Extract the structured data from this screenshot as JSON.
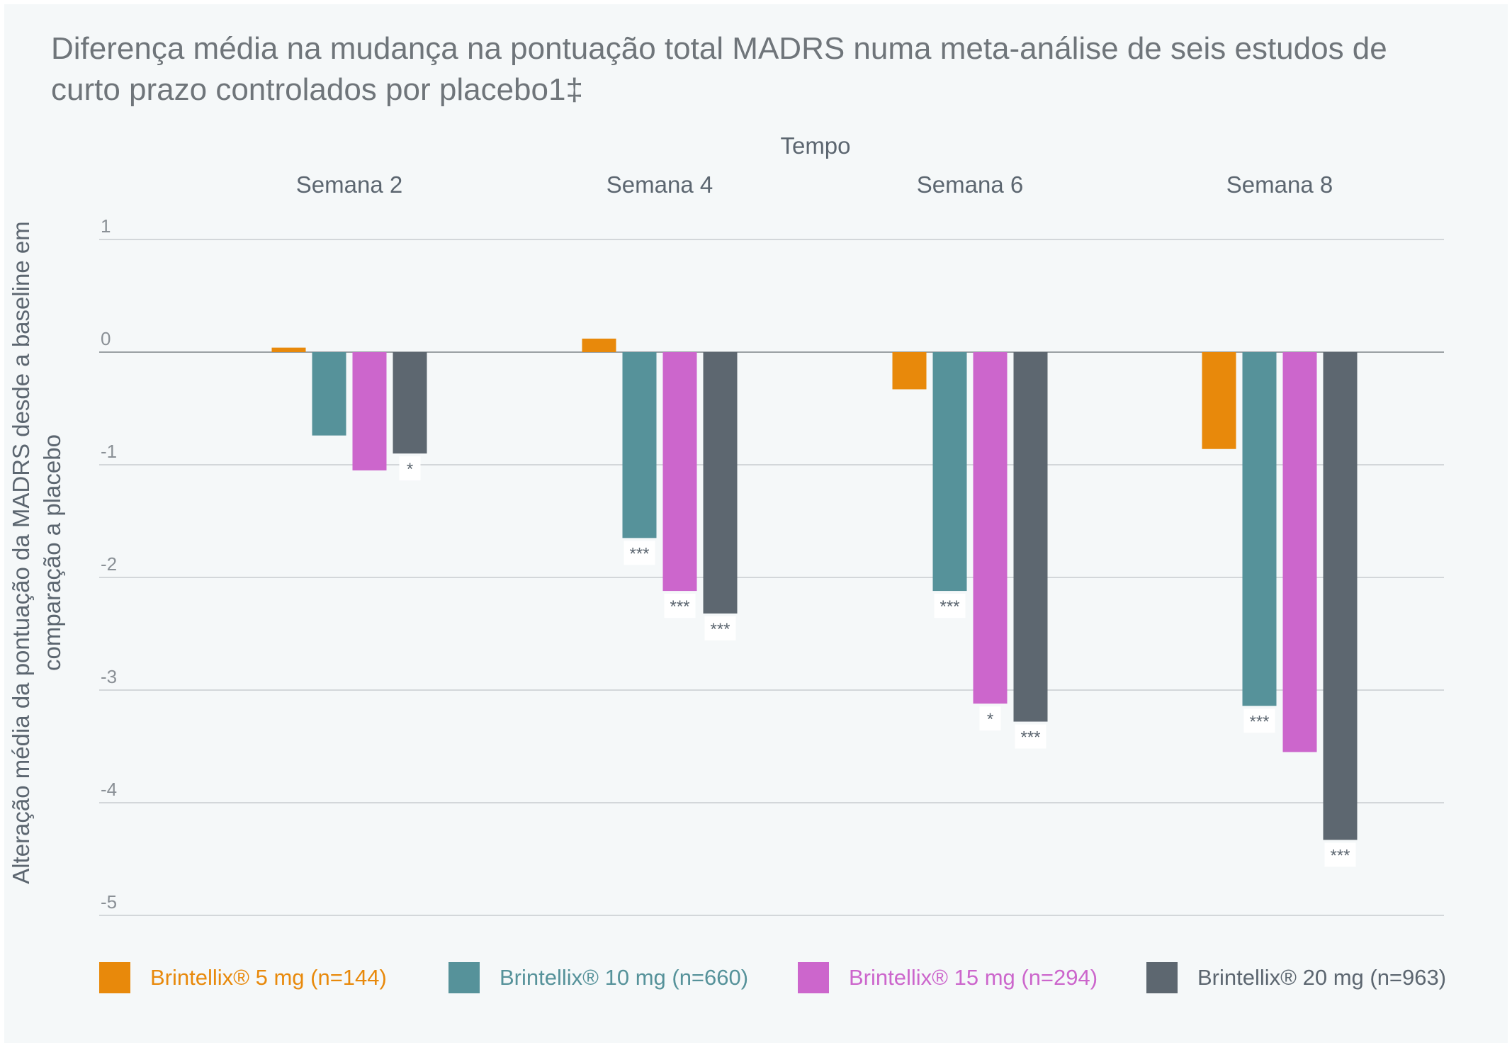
{
  "title": "Diferença média na mudança na pontuação total MADRS numa meta-análise de seis estudos de curto prazo controlados por placebo1‡",
  "chart_data": {
    "type": "bar",
    "x_axis_title": "Tempo",
    "ylabel": "Alteração média da pontuação da MADRS desde a baseline em comparação a placebo",
    "categories": [
      "Semana 2",
      "Semana 4",
      "Semana 6",
      "Semana 8"
    ],
    "ylim": [
      -5,
      1
    ],
    "yticks": [
      "1",
      "0",
      "-1",
      "-2",
      "-3",
      "-4",
      "-5"
    ],
    "ytick_values": [
      1,
      0,
      -1,
      -2,
      -3,
      -4,
      -5
    ],
    "grid": true,
    "legend_position": "bottom",
    "series": [
      {
        "name": "Brintellix® 5 mg (n=144)",
        "color": "#e8890b",
        "values": [
          0.04,
          0.12,
          -0.33,
          -0.86
        ],
        "annotations": [
          "",
          "",
          "",
          ""
        ]
      },
      {
        "name": "Brintellix® 10 mg (n=660)",
        "color": "#56929a",
        "values": [
          -0.74,
          -1.65,
          -2.12,
          -3.14
        ],
        "annotations": [
          "",
          "***",
          "***",
          "***"
        ]
      },
      {
        "name": "Brintellix® 15 mg (n=294)",
        "color": "#cc66cc",
        "values": [
          -1.05,
          -2.12,
          -3.12,
          -3.55
        ],
        "annotations": [
          "",
          "***",
          "*",
          ""
        ]
      },
      {
        "name": "Brintellix® 20 mg (n=963)",
        "color": "#5d6770",
        "values": [
          -0.9,
          -2.32,
          -3.28,
          -4.33
        ],
        "annotations": [
          "*",
          "***",
          "***",
          "***"
        ]
      }
    ]
  },
  "colors": {
    "panel_background": "#f5f8f9",
    "grid": "#c8cccf",
    "zero_line": "#9aa0a4",
    "text": "#5c6670"
  }
}
